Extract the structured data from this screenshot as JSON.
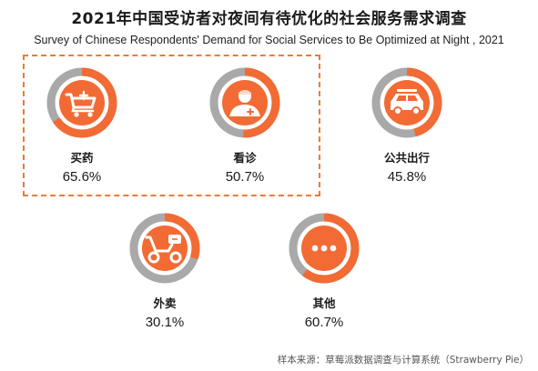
{
  "title": "2021年中国受访者对夜间有待优化的社会服务需求调查",
  "subtitle": "Survey of Chinese Respondents' Demand for Social Services to Be Optimized at Night , 2021",
  "source": "样本来源：草莓派数据调查与计算系统（Strawberry Pie）",
  "colors": {
    "accent": "#f26b34",
    "track": "#a9a9a9"
  },
  "chart_data": {
    "type": "pie",
    "title": "2021年中国受访者对夜间有待优化的社会服务需求调查",
    "subtitle": "Survey of Chinese Respondents' Demand for Social Services to Be Optimized at Night , 2021",
    "categories": [
      "买药",
      "看诊",
      "公共出行",
      "外卖",
      "其他"
    ],
    "values": [
      65.6,
      50.7,
      45.8,
      30.1,
      60.7
    ],
    "value_labels": [
      "65.6%",
      "50.7%",
      "45.8%",
      "30.1%",
      "60.7%"
    ],
    "icons": [
      "shopping-cart-icon",
      "doctor-icon",
      "car-icon",
      "scooter-icon",
      "more-dots-icon"
    ],
    "highlighted": [
      "买药",
      "看诊"
    ]
  }
}
